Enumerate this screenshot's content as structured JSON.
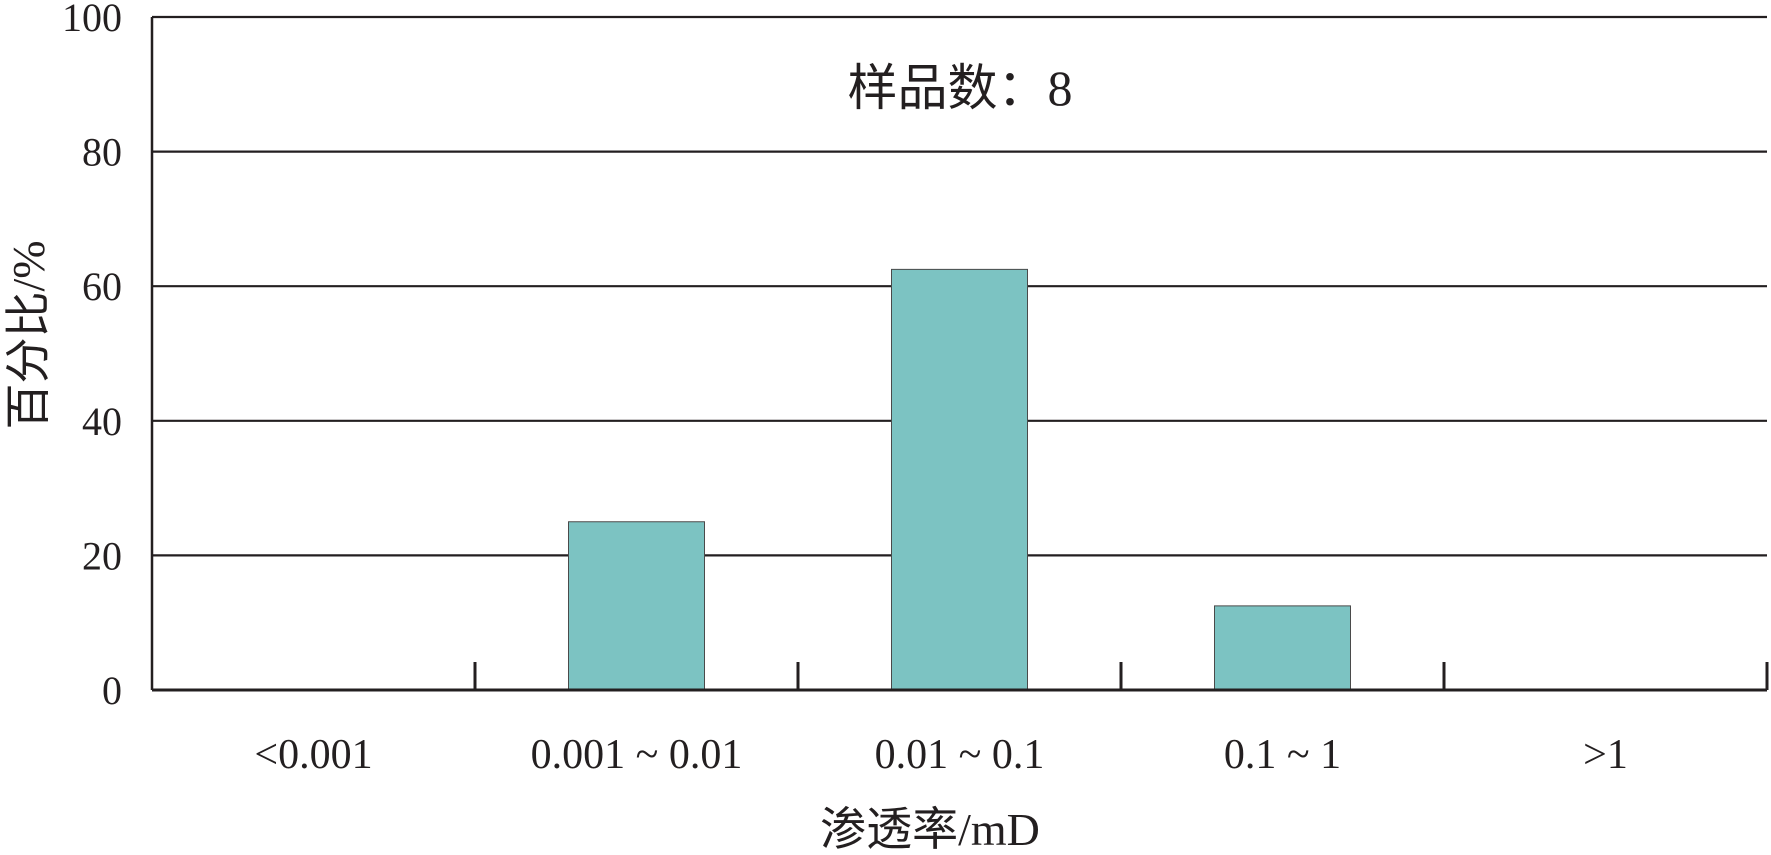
{
  "chart_data": {
    "type": "bar",
    "categories": [
      "<0.001",
      "0.001 ~ 0.01",
      "0.01 ~ 0.1",
      "0.1 ~ 1",
      ">1"
    ],
    "values": [
      0,
      25,
      62.5,
      12.5,
      0
    ],
    "xlabel": "渗透率/mD",
    "ylabel": "百分比/%",
    "ylim": [
      0,
      100
    ],
    "yticks": [
      0,
      20,
      40,
      60,
      80,
      100
    ],
    "grid": true,
    "annotation": "样品数：8",
    "bar_color": "#7cc3c2",
    "line_color": "#231f20"
  }
}
